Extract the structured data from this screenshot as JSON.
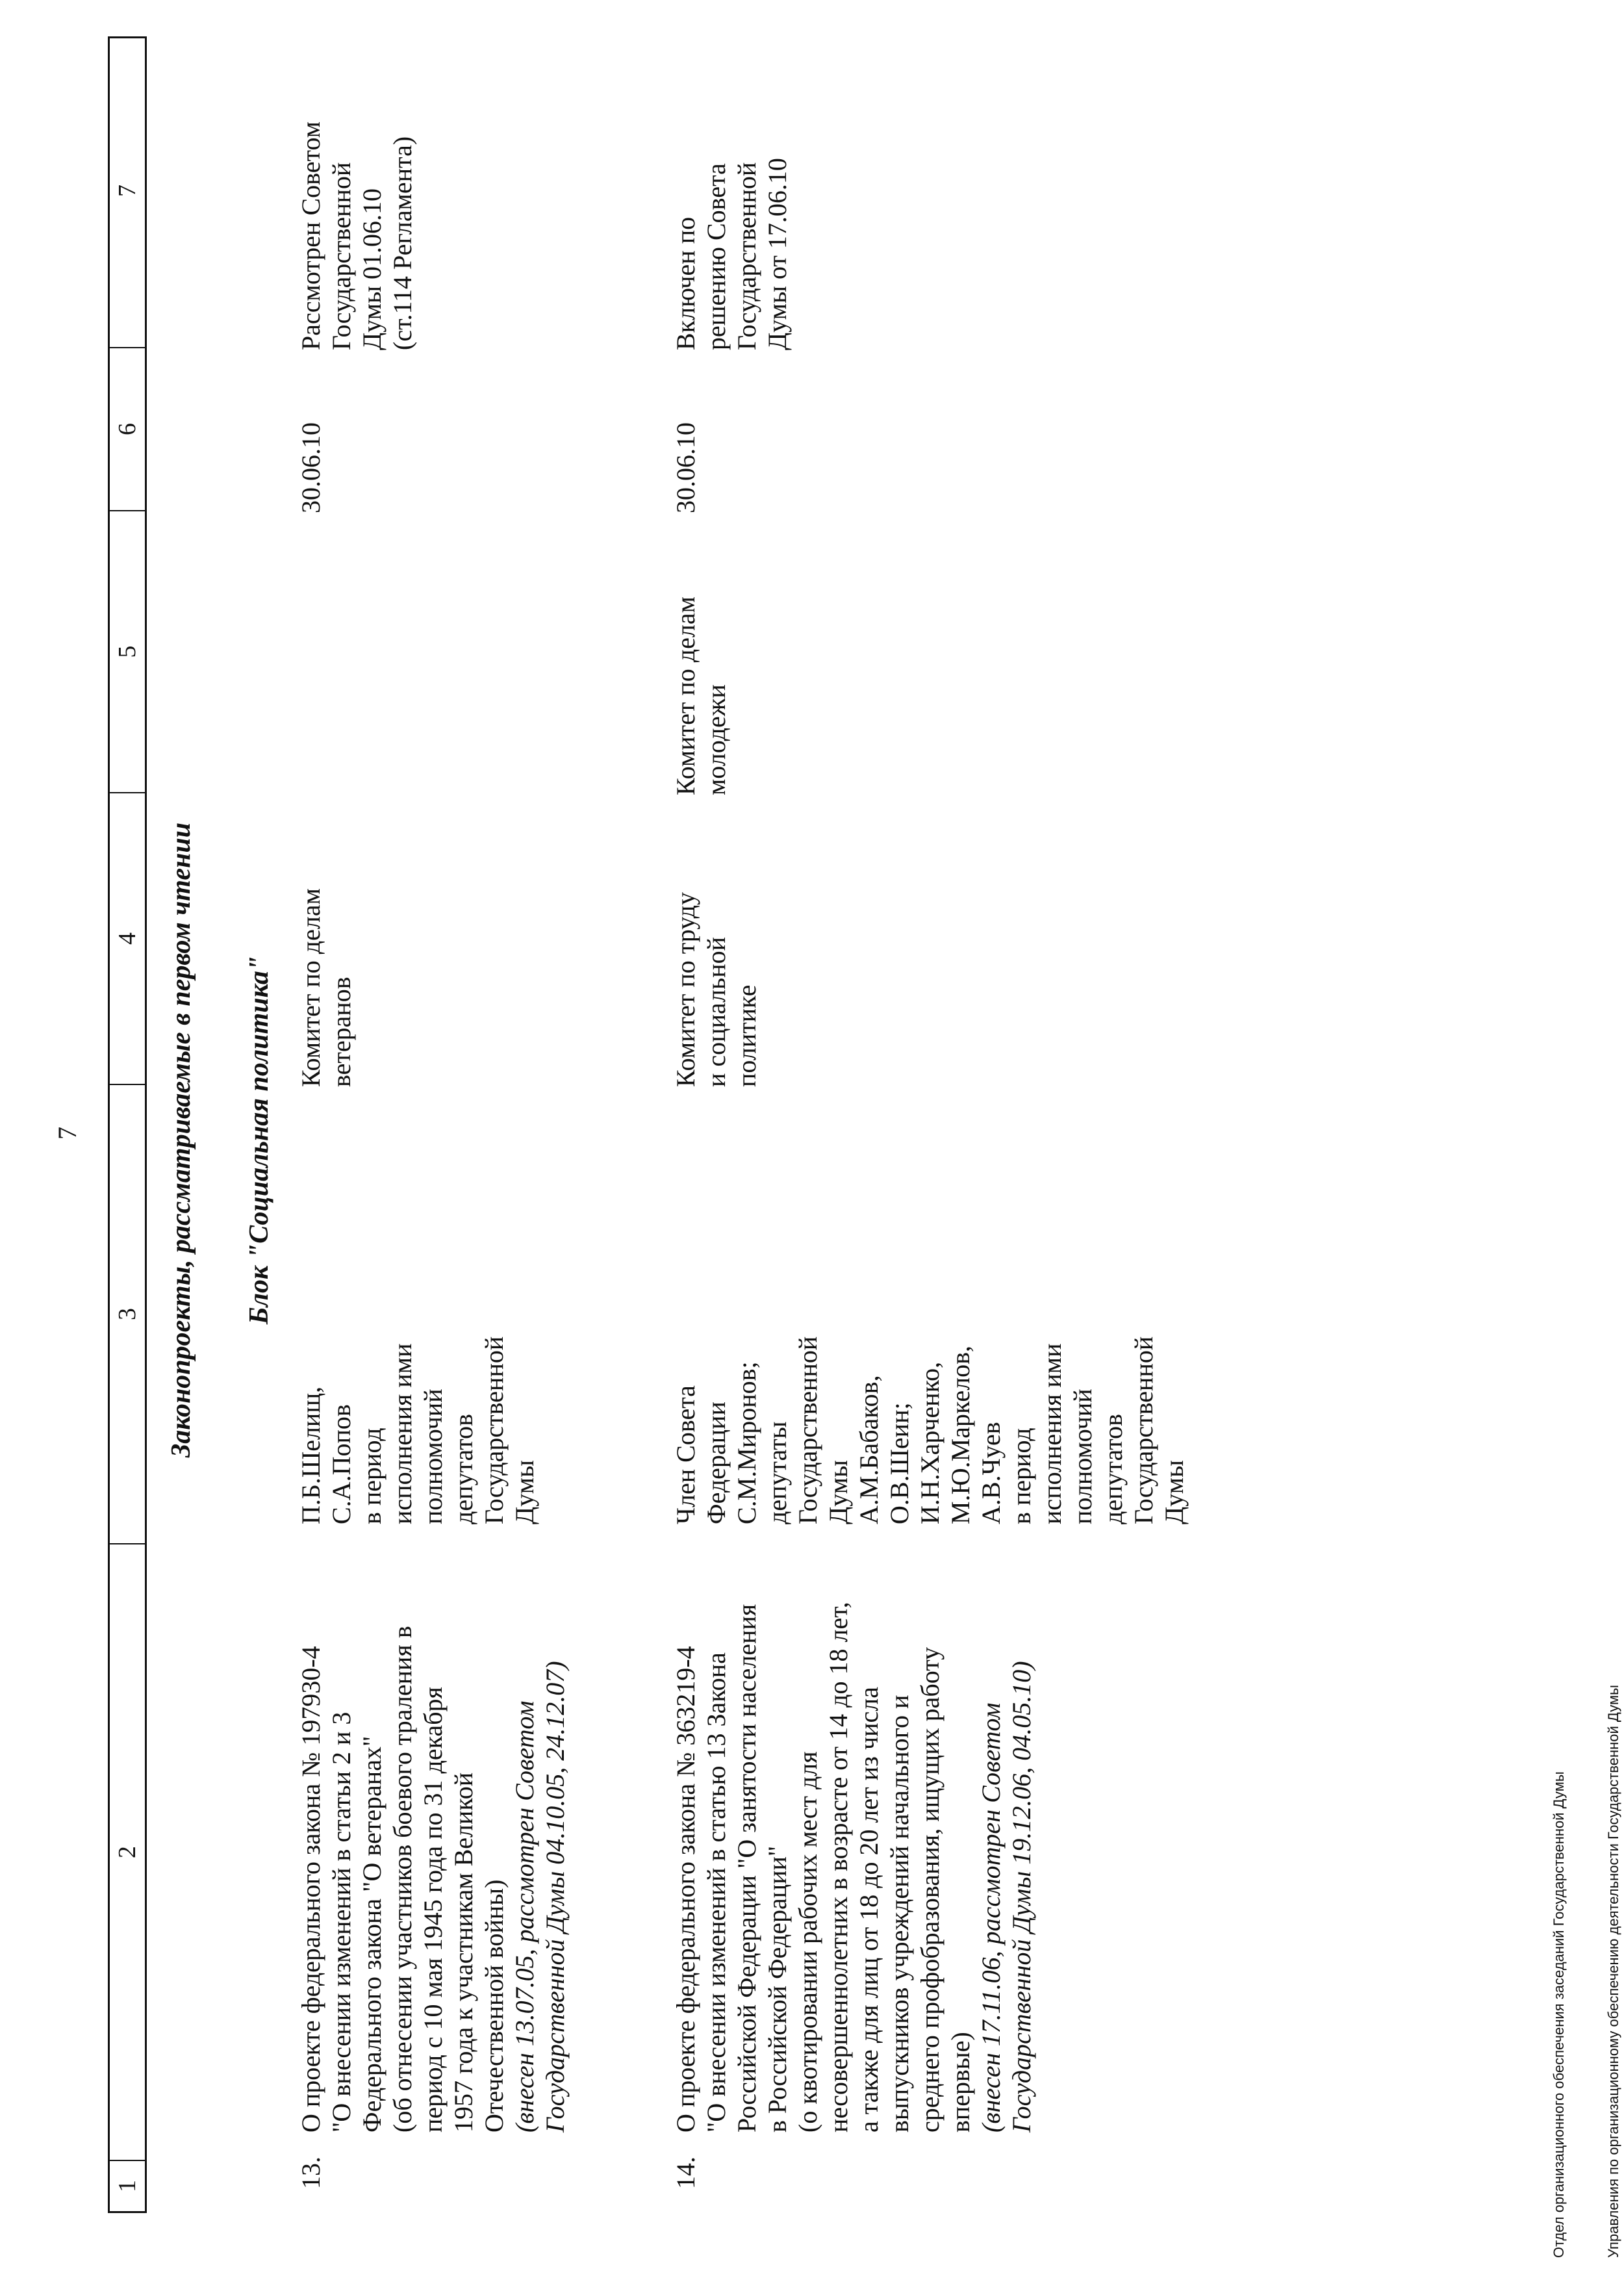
{
  "page_number": "7",
  "header_columns": [
    "1",
    "2",
    "3",
    "4",
    "5",
    "6",
    "7"
  ],
  "section_title": "Законопроекты, рассматриваемые в первом чтении",
  "block_title": "Блок \"Социальная политика\"",
  "rows": [
    {
      "num": "13.",
      "description": [
        {
          "t": "О проекте федерального закона № 197930-4",
          "i": false
        },
        {
          "t": "\"О внесении изменений в статьи 2 и 3",
          "i": false
        },
        {
          "t": "Федерального закона \"О ветеранах\"",
          "i": false
        },
        {
          "t": "(об отнесении участников боевого траления в",
          "i": false
        },
        {
          "t": "период с 10 мая 1945 года по 31 декабря",
          "i": false
        },
        {
          "t": "1957 года к участникам Великой",
          "i": false
        },
        {
          "t": "Отечественной войны)",
          "i": false
        },
        {
          "t": "(внесен 13.07.05, рассмотрен Советом",
          "i": true
        },
        {
          "t": "Государственной Думы 04.10.05, 24.12.07)",
          "i": true
        }
      ],
      "authors": [
        "П.Б.Шелищ,",
        "С.А.Попов",
        "в период",
        "исполнения ими",
        "полномочий",
        "депутатов",
        "Государственной",
        "Думы"
      ],
      "committee": [
        "Комитет по делам",
        "ветеранов"
      ],
      "co_committee": [],
      "date": "30.06.10",
      "note": [
        "Рассмотрен Советом",
        "Государственной",
        "Думы 01.06.10",
        "(ст.114 Регламента)"
      ]
    },
    {
      "num": "14.",
      "description": [
        {
          "t": "О проекте федерального закона № 363219-4",
          "i": false
        },
        {
          "t": "\"О внесении изменений в статью 13 Закона",
          "i": false
        },
        {
          "t": "Российской Федерации \"О занятости населения",
          "i": false
        },
        {
          "t": "в Российской Федерации\"",
          "i": false
        },
        {
          "t": "(о квотировании рабочих мест для",
          "i": false
        },
        {
          "t": "несовершеннолетних в возрасте от 14 до 18 лет,",
          "i": false
        },
        {
          "t": "а также для лиц от 18 до 20 лет из числа",
          "i": false
        },
        {
          "t": "выпускников учреждений начального и",
          "i": false
        },
        {
          "t": "среднего профобразования, ищущих работу",
          "i": false
        },
        {
          "t": "впервые)",
          "i": false
        },
        {
          "t": "(внесен 17.11.06, рассмотрен Советом",
          "i": true
        },
        {
          "t": "Государственной Думы 19.12.06, 04.05.10)",
          "i": true
        }
      ],
      "authors": [
        "Член Совета",
        "Федерации",
        "С.М.Миронов;",
        "депутаты",
        "Государственной",
        "Думы",
        "А.М.Бабаков,",
        "О.В.Шеин;",
        "И.Н.Харченко,",
        "М.Ю.Маркелов,",
        "А.В.Чуев",
        "в период",
        "исполнения ими",
        "полномочий",
        "депутатов",
        "Государственной",
        "Думы"
      ],
      "committee": [
        "Комитет по труду",
        "и социальной",
        "политике"
      ],
      "co_committee": [
        "Комитет по делам",
        "молодежи"
      ],
      "date": "30.06.10",
      "note": [
        "Включен по",
        "решению Совета",
        "Государственной",
        "Думы от 17.06.10"
      ]
    }
  ],
  "footer": [
    "Отдел организационного обеспечения заседаний Государственной Думы",
    "Управления по организационному обеспечению деятельности Государственной Думы"
  ]
}
